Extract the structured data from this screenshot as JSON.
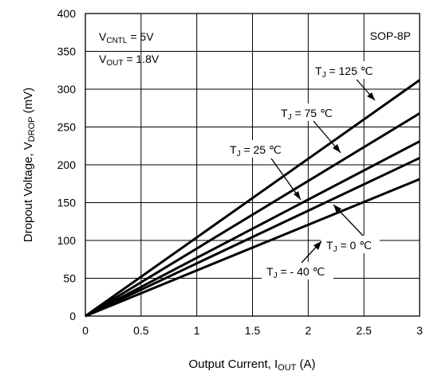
{
  "chart_data": {
    "type": "line",
    "title": "",
    "xlabel": "Output Current, I",
    "xlabel_sub": "OUT",
    "xlabel_suffix": " (A)",
    "ylabel": "Dropout Voltage, V",
    "ylabel_sub": "DROP",
    "ylabel_suffix": " (mV)",
    "xlim": [
      0,
      3
    ],
    "ylim": [
      0,
      400
    ],
    "grid": true,
    "x_ticks": [
      0,
      0.5,
      1,
      1.5,
      2,
      2.5,
      3
    ],
    "y_ticks": [
      0,
      50,
      100,
      150,
      200,
      250,
      300,
      350,
      400
    ],
    "package_label": "SOP-8P",
    "conditions": [
      {
        "symbol": "V",
        "sub": "CNTL",
        "value": " = 5V"
      },
      {
        "symbol": "V",
        "sub": "OUT",
        "value": " = 1.8V"
      }
    ],
    "series": [
      {
        "tag": "T",
        "tag_sub": "J",
        "tag_value": " = 125 ℃",
        "x": [
          0,
          3
        ],
        "y": [
          0,
          312
        ]
      },
      {
        "tag": "T",
        "tag_sub": "J",
        "tag_value": " = 75 ℃",
        "x": [
          0,
          3
        ],
        "y": [
          0,
          268
        ]
      },
      {
        "tag": "T",
        "tag_sub": "J",
        "tag_value": " = 25 ℃",
        "x": [
          0,
          3
        ],
        "y": [
          0,
          231
        ]
      },
      {
        "tag": "T",
        "tag_sub": "J",
        "tag_value": " = 0 ℃",
        "x": [
          0,
          3
        ],
        "y": [
          0,
          209
        ]
      },
      {
        "tag": "T",
        "tag_sub": "J",
        "tag_value": " = - 40 ℃",
        "x": [
          0,
          3
        ],
        "y": [
          0,
          181
        ]
      }
    ]
  }
}
